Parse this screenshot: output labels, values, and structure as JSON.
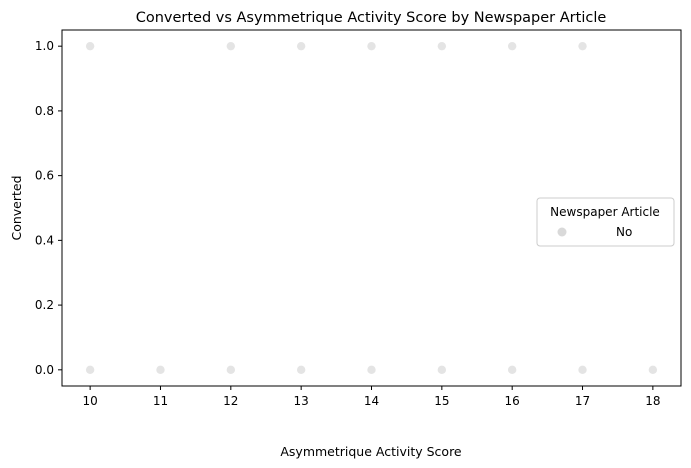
{
  "chart_data": {
    "type": "scatter",
    "title": "Converted vs Asymmetrique Activity Score by Newspaper Article",
    "xlabel": "Asymmetrique Activity Score",
    "ylabel": "Converted",
    "xlim": [
      9.6,
      18.4
    ],
    "ylim": [
      -0.05,
      1.05
    ],
    "xticks": [
      10,
      11,
      12,
      13,
      14,
      15,
      16,
      17,
      18
    ],
    "yticks": [
      0.0,
      0.2,
      0.4,
      0.6,
      0.8,
      1.0
    ],
    "ytick_labels": [
      "0.0",
      "0.2",
      "0.4",
      "0.6",
      "0.8",
      "1.0"
    ],
    "grid": false,
    "legend": {
      "title": "Newspaper Article",
      "placement": "center-right",
      "entries": [
        "No"
      ]
    },
    "series": [
      {
        "name": "No",
        "color": "#d9d9d9",
        "points": [
          {
            "x": 10,
            "y": 1
          },
          {
            "x": 12,
            "y": 1
          },
          {
            "x": 13,
            "y": 1
          },
          {
            "x": 14,
            "y": 1
          },
          {
            "x": 15,
            "y": 1
          },
          {
            "x": 16,
            "y": 1
          },
          {
            "x": 17,
            "y": 1
          },
          {
            "x": 10,
            "y": 0
          },
          {
            "x": 11,
            "y": 0
          },
          {
            "x": 12,
            "y": 0
          },
          {
            "x": 13,
            "y": 0
          },
          {
            "x": 14,
            "y": 0
          },
          {
            "x": 15,
            "y": 0
          },
          {
            "x": 16,
            "y": 0
          },
          {
            "x": 17,
            "y": 0
          },
          {
            "x": 18,
            "y": 0
          }
        ]
      }
    ]
  }
}
